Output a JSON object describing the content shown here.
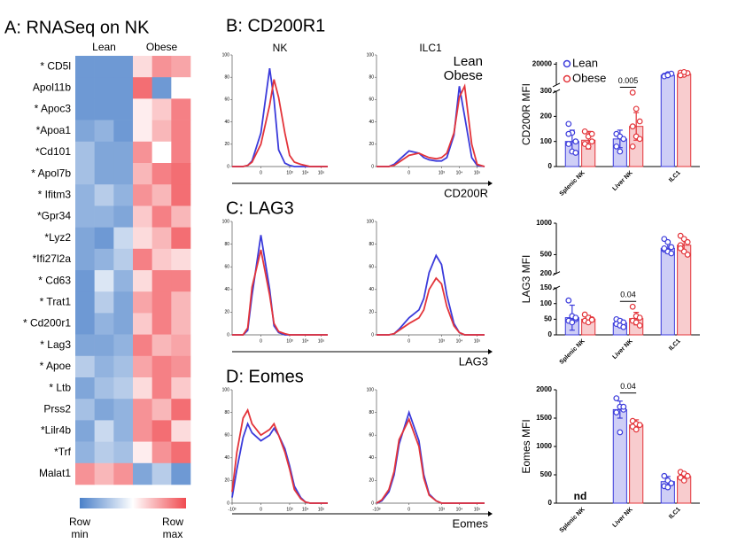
{
  "chart_data": [
    {
      "type": "heatmap",
      "title": "A: RNASeq on NK",
      "column_groups": [
        "Lean",
        "Obese"
      ],
      "rows": [
        "* CD5l",
        "Apol11b",
        "* Apoc3",
        "*Apoa1",
        "*Cd101",
        "* Apol7b",
        "* Ifitm3",
        "*Gpr34",
        "*Lyz2",
        "*Ifi27l2a",
        "* Cd63",
        "* Trat1",
        "* Cd200r1",
        "* Lag3",
        "* Apoe",
        "* Ltb",
        "Prss2",
        "*Lilr4b",
        "*Trf",
        "Malat1"
      ],
      "values": [
        [
          0.1,
          0.1,
          0.1,
          0.6,
          0.8,
          0.75
        ],
        [
          0.1,
          0.1,
          0.1,
          0.9,
          0.1,
          0.5
        ],
        [
          0.1,
          0.1,
          0.1,
          0.55,
          0.65,
          0.85
        ],
        [
          0.15,
          0.2,
          0.1,
          0.55,
          0.7,
          0.85
        ],
        [
          0.25,
          0.15,
          0.15,
          0.8,
          0.5,
          0.85
        ],
        [
          0.25,
          0.15,
          0.15,
          0.7,
          0.85,
          0.9
        ],
        [
          0.2,
          0.3,
          0.2,
          0.8,
          0.7,
          0.9
        ],
        [
          0.2,
          0.2,
          0.15,
          0.65,
          0.85,
          0.7
        ],
        [
          0.15,
          0.1,
          0.35,
          0.6,
          0.7,
          0.9
        ],
        [
          0.15,
          0.2,
          0.3,
          0.85,
          0.65,
          0.6
        ],
        [
          0.1,
          0.4,
          0.2,
          0.6,
          0.85,
          0.85
        ],
        [
          0.1,
          0.3,
          0.15,
          0.75,
          0.85,
          0.7
        ],
        [
          0.1,
          0.2,
          0.15,
          0.65,
          0.85,
          0.7
        ],
        [
          0.15,
          0.15,
          0.2,
          0.85,
          0.7,
          0.75
        ],
        [
          0.3,
          0.2,
          0.25,
          0.75,
          0.85,
          0.8
        ],
        [
          0.15,
          0.25,
          0.3,
          0.6,
          0.85,
          0.65
        ],
        [
          0.25,
          0.15,
          0.2,
          0.8,
          0.7,
          0.9
        ],
        [
          0.15,
          0.35,
          0.2,
          0.8,
          0.9,
          0.6
        ],
        [
          0.2,
          0.3,
          0.25,
          0.55,
          0.8,
          0.9
        ],
        [
          0.8,
          0.7,
          0.8,
          0.15,
          0.3,
          0.1
        ]
      ],
      "vlim": [
        0,
        1
      ],
      "colors": [
        "#4a80c9",
        "#ffffff",
        "#f04a50"
      ],
      "scale_labels": [
        "Row min",
        "Row max"
      ]
    },
    {
      "type": "density",
      "title": "B: CD200R1",
      "columns": [
        "NK",
        "ILC1"
      ],
      "xlabel": "CD200R",
      "xscale": "logicle",
      "x": [
        -1000,
        -500,
        -200,
        -100,
        -50,
        0,
        50,
        100,
        200,
        500,
        1000,
        2000,
        5000,
        10000,
        20000,
        50000,
        100000,
        262144
      ],
      "xlim": [
        -1000,
        262144
      ],
      "xticks": [
        0,
        {
          "value": 1000,
          "label": "10³"
        },
        {
          "value": 10000,
          "label": "10⁴"
        },
        {
          "value": 100000,
          "label": "10⁵"
        }
      ],
      "ylim": [
        0,
        100
      ],
      "yticks": [
        0,
        20,
        40,
        60,
        80,
        100
      ],
      "panels": [
        {
          "series": [
            {
              "color": "#3b3bdb",
              "values": [
                0,
                0,
                0,
                1,
                5,
                30,
                88,
                60,
                15,
                3,
                1,
                0,
                0,
                0,
                0,
                0,
                0,
                0
              ]
            },
            {
              "color": "#e3343a",
              "values": [
                0,
                0,
                0,
                1,
                4,
                20,
                55,
                78,
                62,
                30,
                10,
                4,
                2,
                1,
                0,
                0,
                0,
                0
              ]
            }
          ]
        },
        {
          "series": [
            {
              "name": "Lean",
              "color": "#3b3bdb",
              "values": [
                0,
                0,
                0,
                2,
                6,
                14,
                12,
                8,
                6,
                5,
                5,
                8,
                28,
                72,
                45,
                8,
                1,
                0
              ]
            },
            {
              "name": "Obese",
              "color": "#e3343a",
              "values": [
                0,
                0,
                0,
                1,
                4,
                10,
                12,
                10,
                8,
                7,
                8,
                12,
                30,
                62,
                72,
                20,
                2,
                0
              ]
            }
          ]
        }
      ]
    },
    {
      "type": "density",
      "title": "C: LAG3",
      "xlabel": "LAG3",
      "xscale": "logicle",
      "x": [
        -1000,
        -500,
        -200,
        -100,
        -50,
        0,
        50,
        100,
        200,
        500,
        1000,
        2000,
        5000,
        10000,
        20000,
        50000,
        100000,
        262144
      ],
      "xlim": [
        -1000,
        262144
      ],
      "xticks": [
        0,
        {
          "value": 1000,
          "label": "10³"
        },
        {
          "value": 10000,
          "label": "10⁴"
        },
        {
          "value": 100000,
          "label": "10⁵"
        }
      ],
      "ylim": [
        0,
        100
      ],
      "yticks": [
        0,
        20,
        40,
        60,
        80,
        100
      ],
      "panels": [
        {
          "series": [
            {
              "color": "#3b3bdb",
              "values": [
                0,
                0,
                0,
                4,
                35,
                88,
                40,
                8,
                2,
                0,
                0,
                0,
                0,
                0,
                0,
                0,
                0,
                0
              ]
            },
            {
              "color": "#e3343a",
              "values": [
                0,
                0,
                0,
                6,
                42,
                75,
                35,
                10,
                3,
                1,
                0,
                0,
                0,
                0,
                0,
                0,
                0,
                0
              ]
            }
          ]
        },
        {
          "series": [
            {
              "color": "#3b3bdb",
              "values": [
                0,
                0,
                0,
                1,
                5,
                15,
                22,
                32,
                55,
                70,
                62,
                35,
                10,
                2,
                0,
                0,
                0,
                0
              ]
            },
            {
              "color": "#e3343a",
              "values": [
                0,
                0,
                0,
                1,
                4,
                10,
                15,
                22,
                40,
                50,
                45,
                25,
                8,
                2,
                0,
                0,
                0,
                0
              ]
            }
          ]
        }
      ]
    },
    {
      "type": "density",
      "title": "D: Eomes",
      "xlabel": "Eomes",
      "xscale": "logicle",
      "x": [
        -1000,
        -500,
        -200,
        -100,
        -50,
        0,
        50,
        100,
        200,
        500,
        1000,
        2000,
        5000,
        10000,
        20000,
        50000,
        100000,
        262144
      ],
      "xlim": [
        -1000,
        262144
      ],
      "xticks": [
        {
          "value": -1000,
          "label": "-10³"
        },
        0,
        {
          "value": 1000,
          "label": "10³"
        },
        {
          "value": 10000,
          "label": "10⁴"
        },
        {
          "value": 100000,
          "label": "10⁵"
        }
      ],
      "ylim": [
        0,
        100
      ],
      "yticks": [
        0,
        20,
        40,
        60,
        80,
        100
      ],
      "panels": [
        {
          "series": [
            {
              "color": "#3b3bdb",
              "values": [
                5,
                30,
                58,
                70,
                62,
                55,
                60,
                66,
                60,
                48,
                33,
                15,
                5,
                1,
                0,
                0,
                0,
                0
              ]
            },
            {
              "color": "#e3343a",
              "values": [
                10,
                45,
                75,
                82,
                70,
                60,
                65,
                70,
                60,
                45,
                30,
                12,
                4,
                1,
                0,
                0,
                0,
                0
              ]
            }
          ]
        },
        {
          "series": [
            {
              "color": "#3b3bdb",
              "values": [
                0,
                2,
                10,
                25,
                52,
                80,
                55,
                25,
                8,
                2,
                0,
                0,
                0,
                0,
                0,
                0,
                0,
                0
              ]
            },
            {
              "color": "#e3343a",
              "values": [
                0,
                3,
                12,
                28,
                56,
                74,
                50,
                22,
                7,
                2,
                0,
                0,
                0,
                0,
                0,
                0,
                0,
                0
              ]
            }
          ]
        }
      ]
    },
    {
      "type": "bar",
      "ylabel": "CD200R MFI",
      "categories": [
        "Splenic NK",
        "Liver NK",
        "ILC1"
      ],
      "segments": [
        {
          "ylim": [
            0,
            300
          ],
          "yticks": [
            0,
            100,
            200,
            300
          ]
        },
        {
          "ylim": [
            300,
            22000
          ],
          "yticks": [
            20000
          ]
        }
      ],
      "series": [
        {
          "name": "Lean",
          "color": "#3b3bdb",
          "values": [
            100,
            110,
            9500
          ],
          "errors": [
            45,
            35,
            1200
          ],
          "points": [
            [
              170,
              135,
              100,
              90,
              60,
              55,
              130
            ],
            [
              130,
              120,
              110,
              80,
              60
            ],
            [
              9000,
              10500,
              11000,
              8500,
              9500
            ]
          ]
        },
        {
          "name": "Obese",
          "color": "#e3343a",
          "values": [
            105,
            160,
            10500
          ],
          "errors": [
            35,
            55,
            1500
          ],
          "points": [
            [
              140,
              120,
              100,
              90,
              80,
              130
            ],
            [
              295,
              230,
              180,
              160,
              120,
              110,
              80
            ],
            [
              12000,
              10000,
              11500,
              9500,
              12500
            ]
          ]
        }
      ],
      "annotations": [
        {
          "text": "0.005",
          "category": "Liver NK"
        }
      ]
    },
    {
      "type": "bar",
      "ylabel": "LAG3 MFI",
      "categories": [
        "Splenic NK",
        "Liver NK",
        "ILC1"
      ],
      "segments": [
        {
          "ylim": [
            0,
            150
          ],
          "yticks": [
            0,
            50,
            100,
            150
          ]
        },
        {
          "ylim": [
            200,
            1000
          ],
          "yticks": [
            200,
            500,
            1000
          ]
        }
      ],
      "series": [
        {
          "color": "#3b3bdb",
          "values": [
            55,
            38,
            600
          ],
          "errors": [
            40,
            12,
            80
          ],
          "points": [
            [
              110,
              60,
              50,
              45,
              40,
              55
            ],
            [
              50,
              45,
              40,
              35,
              30,
              25
            ],
            [
              750,
              700,
              620,
              580,
              550,
              520,
              600
            ]
          ]
        },
        {
          "color": "#e3343a",
          "values": [
            50,
            52,
            650
          ],
          "errors": [
            12,
            20,
            120
          ],
          "points": [
            [
              65,
              55,
              50,
              45,
              40,
              48
            ],
            [
              90,
              60,
              55,
              45,
              40,
              30
            ],
            [
              800,
              750,
              700,
              650,
              550,
              500,
              600
            ]
          ]
        }
      ],
      "annotations": [
        {
          "text": "0.04",
          "category": "Liver NK"
        }
      ]
    },
    {
      "type": "bar",
      "ylabel": "Eomes MFI",
      "categories": [
        "Splenic NK",
        "Liver NK",
        "ILC1"
      ],
      "segments": [
        {
          "ylim": [
            0,
            2000
          ],
          "yticks": [
            0,
            500,
            1000,
            1500,
            2000
          ]
        }
      ],
      "series": [
        {
          "color": "#3b3bdb",
          "values": [
            null,
            1650,
            380
          ],
          "errors": [
            null,
            150,
            90
          ],
          "points": [
            [],
            [
              1850,
              1700,
              1650,
              1600,
              1250,
              1700
            ],
            [
              480,
              400,
              350,
              300,
              280
            ]
          ]
        },
        {
          "color": "#e3343a",
          "values": [
            null,
            1380,
            470
          ],
          "errors": [
            null,
            90,
            70
          ],
          "points": [
            [],
            [
              1450,
              1400,
              1380,
              1350,
              1300
            ],
            [
              550,
              520,
              480,
              450,
              400
            ]
          ]
        }
      ],
      "annotations": [
        {
          "text": "nd",
          "category": "Splenic NK"
        },
        {
          "text": "0.04",
          "category": "Liver NK"
        }
      ]
    }
  ]
}
